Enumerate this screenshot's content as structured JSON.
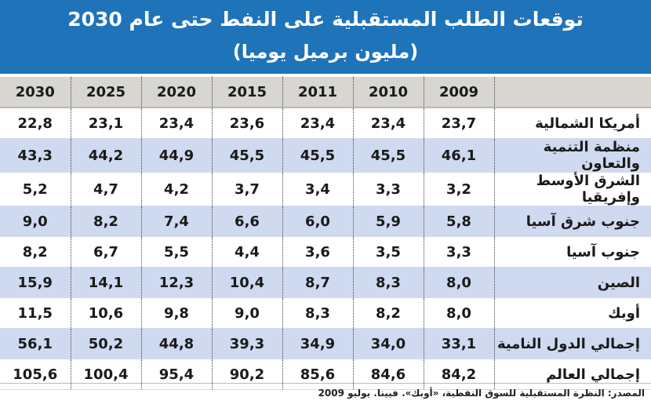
{
  "title": {
    "line1": "توقعات الطلب المستقبلية على النفط حتى عام 2030",
    "line2": "(مليون برميل يوميا)"
  },
  "table": {
    "headers": [
      "2030",
      "2025",
      "2020",
      "2015",
      "2011",
      "2010",
      "2009",
      ""
    ],
    "rows": [
      {
        "region": "أمريكا الشمالية",
        "values": [
          "22,8",
          "23,1",
          "23,4",
          "23,6",
          "23,4",
          "23,4",
          "23,7"
        ]
      },
      {
        "region": "منظمة التنمية والتعاون",
        "values": [
          "43,3",
          "44,2",
          "44,9",
          "45,5",
          "45,5",
          "45,5",
          "46,1"
        ]
      },
      {
        "region": "الشرق الأوسط وإفريقيا",
        "values": [
          "5,2",
          "4,7",
          "4,2",
          "3,7",
          "3,4",
          "3,3",
          "3,2"
        ]
      },
      {
        "region": "جنوب شرق آسيا",
        "values": [
          "9,0",
          "8,2",
          "7,4",
          "6,6",
          "6,0",
          "5,9",
          "5,8"
        ]
      },
      {
        "region": "جنوب آسيا",
        "values": [
          "8,2",
          "6,7",
          "5,5",
          "4,4",
          "3,6",
          "3,5",
          "3,3"
        ]
      },
      {
        "region": "الصين",
        "values": [
          "15,9",
          "14,1",
          "12,3",
          "10,4",
          "8,7",
          "8,3",
          "8,0"
        ]
      },
      {
        "region": "أوبك",
        "values": [
          "11,5",
          "10,6",
          "9,8",
          "9,0",
          "8,3",
          "8,2",
          "8,0"
        ]
      },
      {
        "region": "إجمالي الدول النامية",
        "values": [
          "56,1",
          "50,2",
          "44,8",
          "39,3",
          "34,9",
          "34,0",
          "33,1"
        ]
      },
      {
        "region": "إجمالي العالم",
        "values": [
          "105,6",
          "100,4",
          "95,4",
          "90,2",
          "85,6",
          "84,6",
          "84,2"
        ]
      }
    ]
  },
  "source": "المصدر: النظرة المستقبلية للسوق النفطية، «أوبك». فيينا. يوليو 2009",
  "colors": {
    "title_bg": "#1e73b9",
    "header_bg": "#d8d6d0",
    "stripe_bg": "#cfdaf0"
  }
}
